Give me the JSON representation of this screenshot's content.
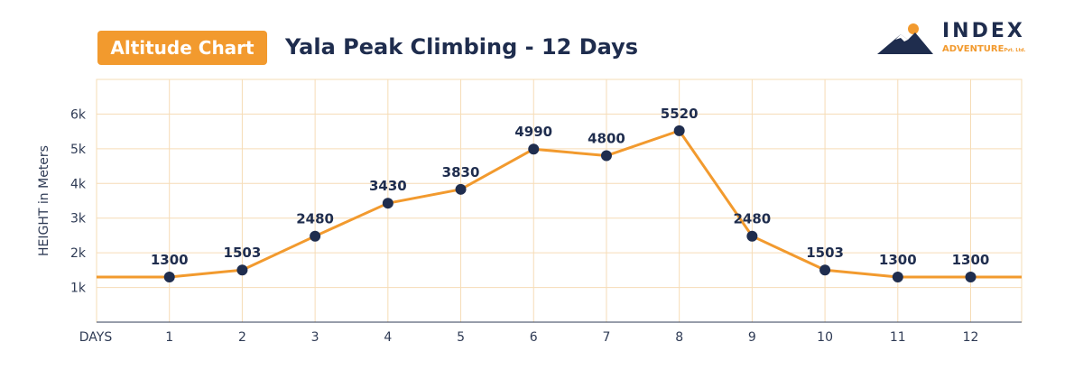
{
  "badge_label": "Altitude Chart",
  "title": "Yala Peak Climbing - 12 Days",
  "logo": {
    "word": "INDEX",
    "sub": "ADVENTURE",
    "suffix": "Pvt. Ltd."
  },
  "colors": {
    "accent": "#f29a2e",
    "navy": "#1f2d4e",
    "grid": "#f6dcb6",
    "axis": "#2f3b55"
  },
  "chart_data": {
    "type": "line",
    "xlabel": "DAYS",
    "ylabel": "HEIGHT in Meters",
    "x": [
      1,
      2,
      3,
      4,
      5,
      6,
      7,
      8,
      9,
      10,
      11,
      12
    ],
    "series": [
      {
        "values": [
          1300,
          1503,
          2480,
          3430,
          3830,
          4990,
          4800,
          5520,
          2480,
          1503,
          1300,
          1300
        ]
      }
    ],
    "data_labels": [
      "1300",
      "1503",
      "2480",
      "3430",
      "3830",
      "4990",
      "4800",
      "5520",
      "2480",
      "1503",
      "1300",
      "1300"
    ],
    "y_ticks": [
      1000,
      2000,
      3000,
      4000,
      5000,
      6000
    ],
    "y_tick_labels": [
      "1k",
      "2k",
      "3k",
      "4k",
      "5k",
      "6k"
    ],
    "x_tick_labels": [
      "1",
      "2",
      "3",
      "4",
      "5",
      "6",
      "7",
      "8",
      "9",
      "10",
      "11",
      "12"
    ],
    "xlim": [
      0,
      12.7
    ],
    "ylim": [
      0,
      7000
    ],
    "line_extends_to_edges": true,
    "grid": true,
    "legend": "none"
  }
}
